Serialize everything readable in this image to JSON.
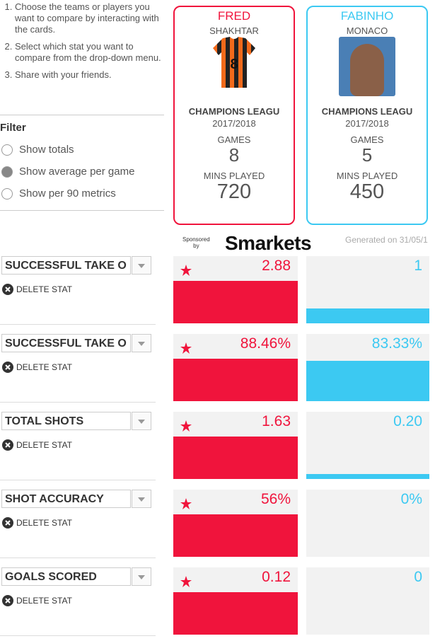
{
  "instructions": [
    "Choose the teams or players you want to compare by interacting with the cards.",
    "Select which stat you want to compare from the drop-down menu.",
    "Share with your friends."
  ],
  "filter": {
    "title": "Filter",
    "options": [
      "Show totals",
      "Show average per game",
      "Show per 90 metrics"
    ],
    "selected": 1
  },
  "players": [
    {
      "name": "FRED",
      "team": "SHAKHTAR",
      "shirt_number": "8",
      "competition": "CHAMPIONS LEAGU",
      "season": "2017/2018",
      "games_label": "GAMES",
      "games": 8,
      "mins_label": "MINS PLAYED",
      "mins": 720,
      "color": "#f0143c"
    },
    {
      "name": "FABINHO",
      "team": "MONACO",
      "competition": "CHAMPIONS LEAGU",
      "season": "2017/2018",
      "games_label": "GAMES",
      "games": 5,
      "mins_label": "MINS PLAYED",
      "mins": 450,
      "color": "#3cc9f2"
    }
  ],
  "sponsor": {
    "line1": "Sponsored",
    "line2": "by",
    "brand": "Smarkets"
  },
  "generated": "Generated on 31/05/1",
  "delete_label": "DELETE STAT",
  "stats": [
    {
      "name": "SUCCESSFUL TAKE O",
      "values": [
        2.88,
        1
      ],
      "value_labels": [
        "2.88",
        "1"
      ]
    },
    {
      "name": "SUCCESSFUL TAKE O",
      "values": [
        88.46,
        83.33
      ],
      "value_labels": [
        "88.46%",
        "83.33%"
      ]
    },
    {
      "name": "TOTAL SHOTS",
      "values": [
        1.63,
        0.2
      ],
      "value_labels": [
        "1.63",
        "0.20"
      ]
    },
    {
      "name": "SHOT ACCURACY",
      "values": [
        56,
        0
      ],
      "value_labels": [
        "56%",
        "0%"
      ]
    },
    {
      "name": "GOALS SCORED",
      "values": [
        0.12,
        0
      ],
      "value_labels": [
        "0.12",
        "0"
      ]
    }
  ]
}
